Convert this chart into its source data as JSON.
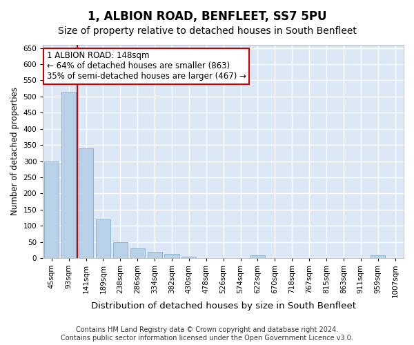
{
  "title": "1, ALBION ROAD, BENFLEET, SS7 5PU",
  "subtitle": "Size of property relative to detached houses in South Benfleet",
  "xlabel": "Distribution of detached houses by size in South Benfleet",
  "ylabel": "Number of detached properties",
  "bar_labels": [
    "45sqm",
    "93sqm",
    "141sqm",
    "189sqm",
    "238sqm",
    "286sqm",
    "334sqm",
    "382sqm",
    "430sqm",
    "478sqm",
    "526sqm",
    "574sqm",
    "622sqm",
    "670sqm",
    "718sqm",
    "767sqm",
    "815sqm",
    "863sqm",
    "911sqm",
    "959sqm",
    "1007sqm"
  ],
  "bar_values": [
    300,
    515,
    340,
    120,
    48,
    30,
    20,
    12,
    5,
    0,
    0,
    0,
    8,
    0,
    0,
    0,
    0,
    0,
    0,
    8,
    0
  ],
  "bar_color": "#b8d0e8",
  "bar_edge_color": "#8ab0cc",
  "vline_x": 2.0,
  "vline_color": "#cc0000",
  "annotation_text": "1 ALBION ROAD: 148sqm\n← 64% of detached houses are smaller (863)\n35% of semi-detached houses are larger (467) →",
  "annotation_box_color": "#ffffff",
  "annotation_box_edge": "#cc0000",
  "ylim": [
    0,
    660
  ],
  "yticks": [
    0,
    50,
    100,
    150,
    200,
    250,
    300,
    350,
    400,
    450,
    500,
    550,
    600,
    650
  ],
  "background_color": "#dce8f5",
  "grid_color": "#ffffff",
  "footer": "Contains HM Land Registry data © Crown copyright and database right 2024.\nContains public sector information licensed under the Open Government Licence v3.0.",
  "title_fontsize": 12,
  "subtitle_fontsize": 10,
  "xlabel_fontsize": 9.5,
  "ylabel_fontsize": 8.5,
  "tick_fontsize": 7.5,
  "annotation_fontsize": 8.5,
  "footer_fontsize": 7
}
